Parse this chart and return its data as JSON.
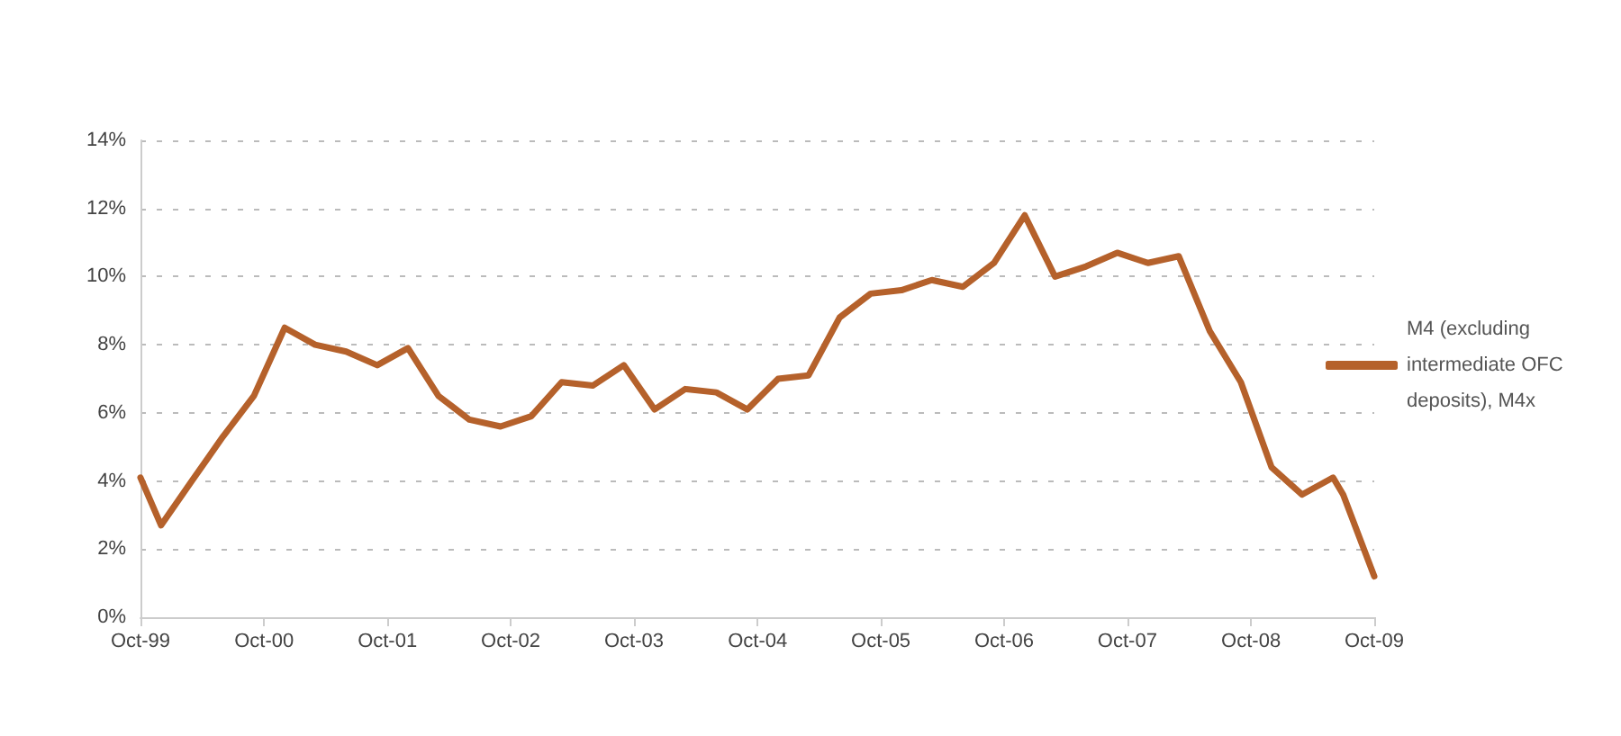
{
  "chart_data": {
    "type": "line",
    "x": [
      "1999-10",
      "1999-12",
      "2000-03",
      "2000-06",
      "2000-09",
      "2000-12",
      "2001-03",
      "2001-06",
      "2001-09",
      "2001-12",
      "2002-03",
      "2002-06",
      "2002-09",
      "2002-12",
      "2003-03",
      "2003-06",
      "2003-09",
      "2003-12",
      "2004-03",
      "2004-06",
      "2004-09",
      "2004-12",
      "2005-03",
      "2005-06",
      "2005-09",
      "2005-12",
      "2006-03",
      "2006-06",
      "2006-09",
      "2006-12",
      "2007-03",
      "2007-06",
      "2007-09",
      "2007-12",
      "2008-03",
      "2008-06",
      "2008-09",
      "2008-12",
      "2009-03",
      "2009-06",
      "2009-07",
      "2009-10"
    ],
    "series": [
      {
        "name": "M4 (excluding intermediate OFC deposits), M4x",
        "color": "#b5612b",
        "values": [
          4.1,
          2.7,
          4.0,
          5.3,
          6.5,
          8.5,
          8.0,
          7.8,
          7.4,
          7.9,
          6.5,
          5.8,
          5.6,
          5.9,
          6.9,
          6.8,
          7.4,
          6.1,
          6.7,
          6.6,
          6.1,
          7.0,
          7.1,
          8.8,
          9.5,
          9.6,
          9.9,
          9.7,
          10.4,
          11.8,
          10.0,
          10.3,
          10.7,
          10.4,
          10.6,
          8.4,
          6.9,
          4.4,
          3.6,
          4.1,
          3.6,
          1.2
        ]
      }
    ],
    "xlim": [
      "1999-10",
      "2009-10"
    ],
    "xticks": [
      {
        "value": "1999-10",
        "label": "Oct-99"
      },
      {
        "value": "2000-10",
        "label": "Oct-00"
      },
      {
        "value": "2001-10",
        "label": "Oct-01"
      },
      {
        "value": "2002-10",
        "label": "Oct-02"
      },
      {
        "value": "2003-10",
        "label": "Oct-03"
      },
      {
        "value": "2004-10",
        "label": "Oct-04"
      },
      {
        "value": "2005-10",
        "label": "Oct-05"
      },
      {
        "value": "2006-10",
        "label": "Oct-06"
      },
      {
        "value": "2007-10",
        "label": "Oct-07"
      },
      {
        "value": "2008-10",
        "label": "Oct-08"
      },
      {
        "value": "2009-10",
        "label": "Oct-09"
      }
    ],
    "ylim": [
      0,
      14
    ],
    "yticks": [
      {
        "value": 0,
        "label": "0%"
      },
      {
        "value": 2,
        "label": "2%"
      },
      {
        "value": 4,
        "label": "4%"
      },
      {
        "value": 6,
        "label": "6%"
      },
      {
        "value": 8,
        "label": "8%"
      },
      {
        "value": 10,
        "label": "10%"
      },
      {
        "value": 12,
        "label": "12%"
      },
      {
        "value": 14,
        "label": "14%"
      }
    ],
    "grid": "y",
    "legend": "right",
    "marker": "none",
    "line_style": "solid"
  }
}
